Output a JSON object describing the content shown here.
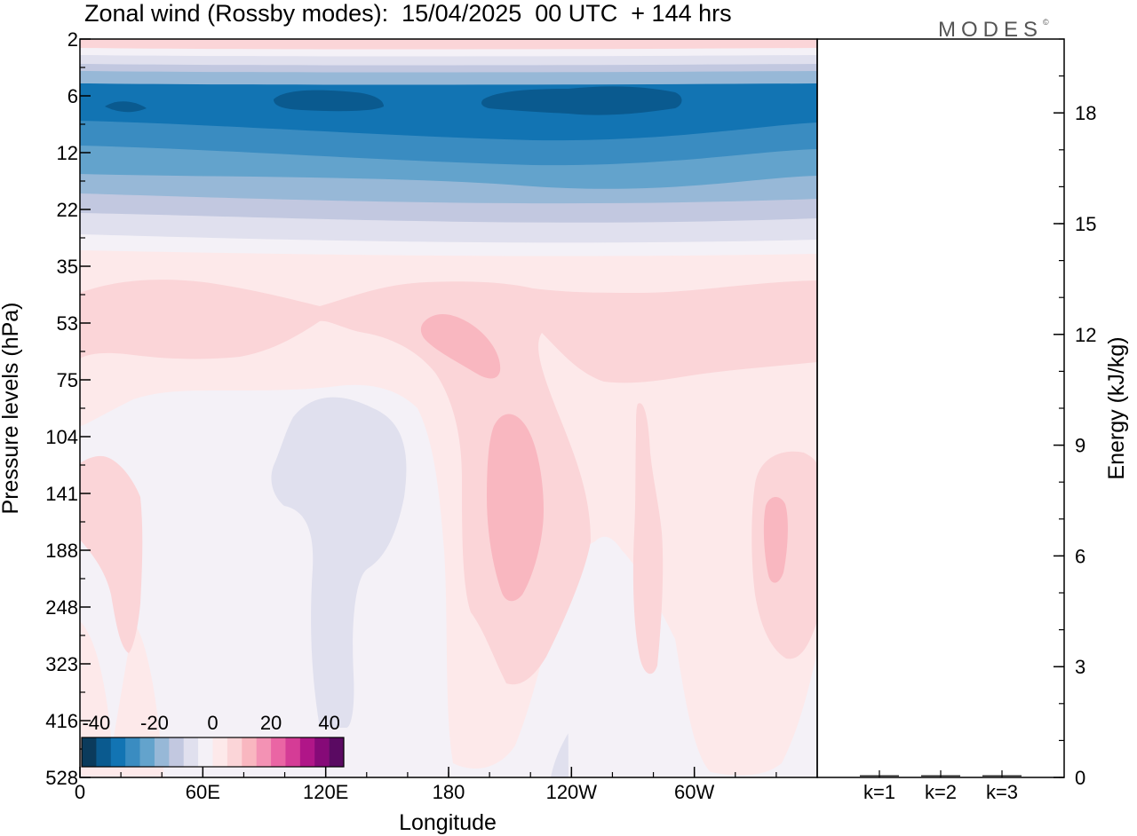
{
  "title": "Zonal wind (Rossby modes):  15/04/2025  00 UTC  + 144 hrs",
  "logo_text": "MODES",
  "logo_mark": "©",
  "chart_data": [
    {
      "type": "heatmap",
      "xlabel": "Longitude",
      "ylabel": "Pressure levels (hPa)",
      "x_tick_labels": [
        "0",
        "60E",
        "120E",
        "180",
        "120W",
        "60W"
      ],
      "x_ticks_deg": [
        0,
        60,
        120,
        180,
        240,
        300
      ],
      "xlim": [
        0,
        360
      ],
      "y_tick_labels": [
        "2",
        "6",
        "12",
        "22",
        "35",
        "53",
        "75",
        "104",
        "141",
        "188",
        "248",
        "323",
        "416",
        "528"
      ],
      "colorbar": {
        "tick_labels": [
          "-40",
          "-20",
          "0",
          "20",
          "40"
        ],
        "levels": [
          -45,
          -40,
          -35,
          -30,
          -25,
          -20,
          -15,
          -10,
          -5,
          0,
          5,
          10,
          15,
          20,
          25,
          30,
          35,
          40,
          45
        ],
        "colors": [
          "#0b3b5c",
          "#0a5a8f",
          "#1274b3",
          "#3a8cc1",
          "#63a3cc",
          "#97b8d7",
          "#c2c8e0",
          "#e0e0ee",
          "#f4f1f7",
          "#fde9ea",
          "#fbd5d8",
          "#f9b7c0",
          "#f392b4",
          "#ea65a4",
          "#d53c96",
          "#b01688",
          "#860a78",
          "#5a0a62"
        ]
      }
    },
    {
      "type": "bar",
      "categories": [
        "k=1",
        "k=2",
        "k=3"
      ],
      "values": [
        0,
        0,
        0
      ],
      "ylabel": "Energy (kJ/kg)",
      "ylim": [
        0,
        20
      ],
      "y_tick_labels": [
        "0",
        "3",
        "6",
        "9",
        "12",
        "15",
        "18"
      ],
      "y_ticks": [
        0,
        3,
        6,
        9,
        12,
        15,
        18
      ]
    }
  ]
}
